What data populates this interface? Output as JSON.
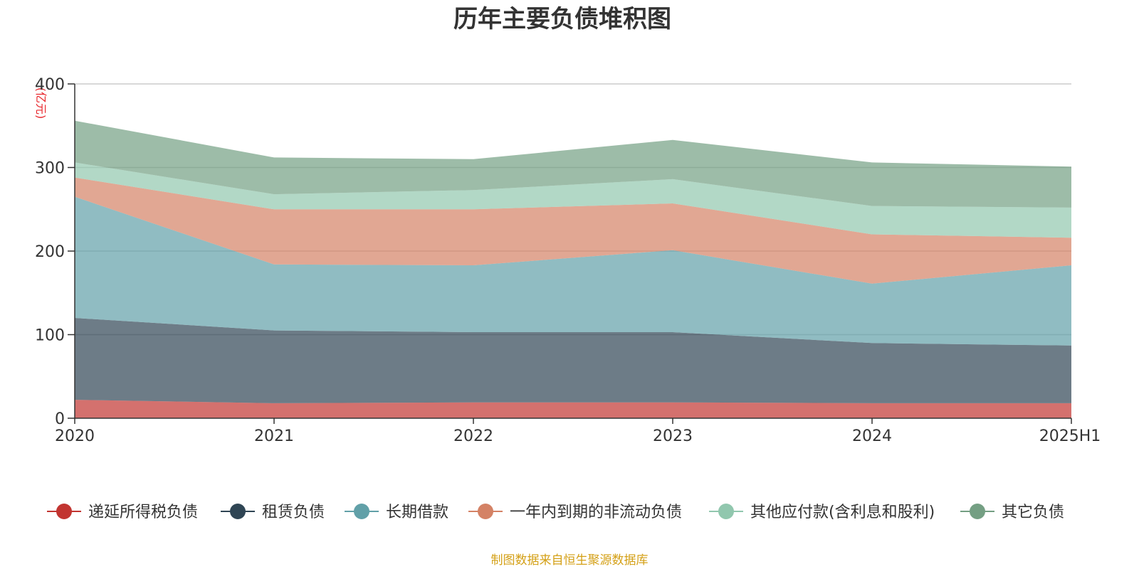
{
  "chart_data": {
    "type": "area",
    "stacked": true,
    "title": "历年主要负债堆积图",
    "unit_label": "(亿元)",
    "unit_color": "#e8262b",
    "categories": [
      "2020",
      "2021",
      "2022",
      "2023",
      "2024",
      "2025H1"
    ],
    "ylim": [
      0,
      400
    ],
    "yticks": [
      "0",
      "100",
      "200",
      "300",
      "400"
    ],
    "grid": true,
    "legend_position": "bottom",
    "series": [
      {
        "name": "递延所得税负债",
        "color": "#c23531",
        "values": [
          22,
          18,
          19,
          19,
          18,
          18
        ]
      },
      {
        "name": "租赁负债",
        "color": "#2f4554",
        "values": [
          98,
          87,
          84,
          84,
          72,
          69
        ]
      },
      {
        "name": "长期借款",
        "color": "#61a0a8",
        "values": [
          145,
          79,
          80,
          98,
          71,
          96
        ]
      },
      {
        "name": "一年内到期的非流动负债",
        "color": "#d48265",
        "values": [
          23,
          66,
          67,
          56,
          59,
          33
        ]
      },
      {
        "name": "其他应付款(含利息和股利)",
        "color": "#91c7ae",
        "values": [
          18,
          18,
          23,
          29,
          34,
          36
        ]
      },
      {
        "name": "其它负债",
        "color": "#749f83",
        "values": [
          50,
          44,
          37,
          47,
          52,
          49
        ]
      }
    ],
    "source": "制图数据来自恒生聚源数据库",
    "source_color": "#d4a017"
  }
}
